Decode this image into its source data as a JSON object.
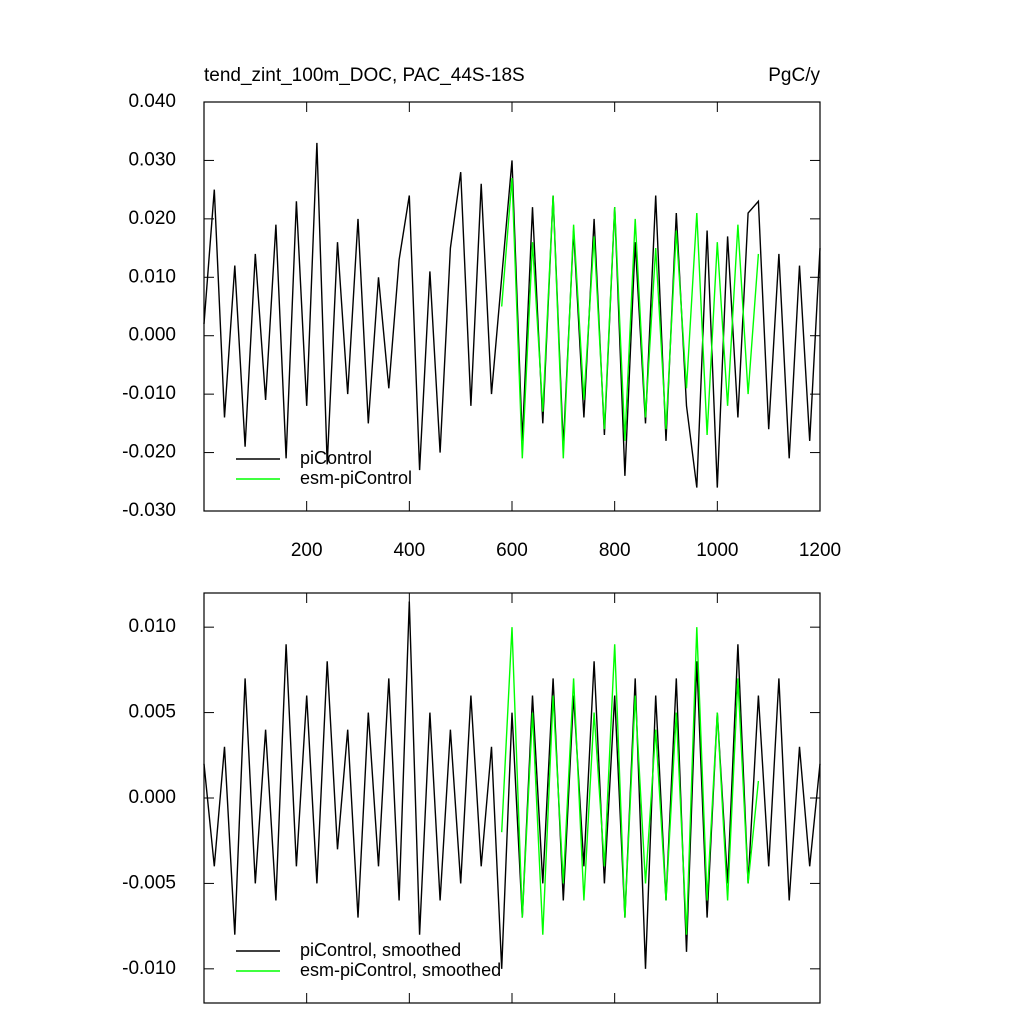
{
  "chart_data": [
    {
      "type": "line",
      "title": "tend_zint_100m_DOC, PAC_44S-18S",
      "units": "PgC/y",
      "xlim": [
        0,
        1200
      ],
      "xticks": [
        200,
        400,
        600,
        800,
        1000,
        1200
      ],
      "ylim": [
        -0.03,
        0.04
      ],
      "yticks": [
        {
          "value": -0.03,
          "label": "-0.030"
        },
        {
          "value": -0.02,
          "label": "-0.020"
        },
        {
          "value": -0.01,
          "label": "-0.010"
        },
        {
          "value": 0,
          "label": "0.000"
        },
        {
          "value": 0.01,
          "label": "0.010"
        },
        {
          "value": 0.02,
          "label": "0.020"
        },
        {
          "value": 0.03,
          "label": "0.030"
        },
        {
          "value": 0.04,
          "label": "0.040"
        }
      ],
      "legend": "lower left",
      "series": [
        {
          "name": "piControl",
          "color": "#000000",
          "x": [
            0,
            20,
            40,
            60,
            80,
            100,
            120,
            140,
            160,
            180,
            200,
            220,
            240,
            260,
            280,
            300,
            320,
            340,
            360,
            380,
            400,
            420,
            440,
            460,
            480,
            500,
            520,
            540,
            560,
            580,
            600,
            620,
            640,
            660,
            680,
            700,
            720,
            740,
            760,
            780,
            800,
            820,
            840,
            860,
            880,
            900,
            920,
            940,
            960,
            980,
            1000,
            1020,
            1040,
            1060,
            1080,
            1100,
            1120,
            1140,
            1160,
            1180,
            1200
          ],
          "values": [
            0.002,
            0.025,
            -0.014,
            0.012,
            -0.019,
            0.014,
            -0.011,
            0.019,
            -0.021,
            0.023,
            -0.012,
            0.033,
            -0.022,
            0.016,
            -0.01,
            0.02,
            -0.015,
            0.01,
            -0.009,
            0.013,
            0.024,
            -0.023,
            0.011,
            -0.02,
            0.015,
            0.028,
            -0.012,
            0.026,
            -0.01,
            0.01,
            0.03,
            -0.018,
            0.022,
            -0.015,
            0.024,
            -0.019,
            0.018,
            -0.014,
            0.02,
            -0.017,
            0.022,
            -0.024,
            0.016,
            -0.015,
            0.024,
            -0.018,
            0.021,
            -0.012,
            -0.026,
            0.018,
            -0.026,
            0.017,
            -0.014,
            0.021,
            0.023,
            -0.016,
            0.014,
            -0.021,
            0.012,
            -0.018,
            0.015
          ]
        },
        {
          "name": "esm-piControl",
          "color": "#00ff00",
          "x": [
            580,
            600,
            620,
            640,
            660,
            680,
            700,
            720,
            740,
            760,
            780,
            800,
            820,
            840,
            860,
            880,
            900,
            920,
            940,
            960,
            980,
            1000,
            1020,
            1040,
            1060,
            1080
          ],
          "values": [
            0.005,
            0.027,
            -0.021,
            0.016,
            -0.013,
            0.024,
            -0.021,
            0.019,
            -0.011,
            0.017,
            -0.016,
            0.022,
            -0.018,
            0.02,
            -0.014,
            0.015,
            -0.016,
            0.018,
            -0.009,
            0.021,
            -0.017,
            0.016,
            -0.012,
            0.019,
            -0.01,
            0.014
          ]
        }
      ]
    },
    {
      "type": "line",
      "xlim": [
        0,
        1200
      ],
      "xticks": [
        200,
        400,
        600,
        800,
        1000,
        1200
      ],
      "ylim": [
        -0.012,
        0.012
      ],
      "yticks": [
        {
          "value": -0.01,
          "label": "-0.010"
        },
        {
          "value": -0.005,
          "label": "-0.005"
        },
        {
          "value": 0,
          "label": "0.000"
        },
        {
          "value": 0.005,
          "label": "0.005"
        },
        {
          "value": 0.01,
          "label": "0.010"
        }
      ],
      "legend": "lower left",
      "series": [
        {
          "name": "piControl, smoothed",
          "color": "#000000",
          "x": [
            0,
            20,
            40,
            60,
            80,
            100,
            120,
            140,
            160,
            180,
            200,
            220,
            240,
            260,
            280,
            300,
            320,
            340,
            360,
            380,
            400,
            420,
            440,
            460,
            480,
            500,
            520,
            540,
            560,
            580,
            600,
            620,
            640,
            660,
            680,
            700,
            720,
            740,
            760,
            780,
            800,
            820,
            840,
            860,
            880,
            900,
            920,
            940,
            960,
            980,
            1000,
            1020,
            1040,
            1060,
            1080,
            1100,
            1120,
            1140,
            1160,
            1180,
            1200
          ],
          "values": [
            0.002,
            -0.004,
            0.003,
            -0.008,
            0.007,
            -0.005,
            0.004,
            -0.006,
            0.009,
            -0.004,
            0.006,
            -0.005,
            0.008,
            -0.003,
            0.004,
            -0.007,
            0.005,
            -0.004,
            0.007,
            -0.006,
            0.0115,
            -0.008,
            0.005,
            -0.006,
            0.004,
            -0.005,
            0.006,
            -0.004,
            0.003,
            -0.01,
            0.005,
            -0.007,
            0.006,
            -0.005,
            0.007,
            -0.006,
            0.006,
            -0.004,
            0.008,
            -0.005,
            0.006,
            -0.007,
            0.007,
            -0.01,
            0.006,
            -0.006,
            0.007,
            -0.009,
            0.008,
            -0.007,
            0.005,
            -0.005,
            0.009,
            -0.005,
            0.006,
            -0.004,
            0.007,
            -0.006,
            0.003,
            -0.004,
            0.002
          ]
        },
        {
          "name": "esm-piControl, smoothed",
          "color": "#00ff00",
          "x": [
            580,
            600,
            620,
            640,
            660,
            680,
            700,
            720,
            740,
            760,
            780,
            800,
            820,
            840,
            860,
            880,
            900,
            920,
            940,
            960,
            980,
            1000,
            1020,
            1040,
            1060,
            1080
          ],
          "values": [
            -0.002,
            0.01,
            -0.007,
            0.005,
            -0.008,
            0.006,
            -0.005,
            0.007,
            -0.006,
            0.005,
            -0.004,
            0.009,
            -0.007,
            0.006,
            -0.005,
            0.004,
            -0.006,
            0.005,
            -0.008,
            0.01,
            -0.006,
            0.005,
            -0.006,
            0.007,
            -0.005,
            0.001
          ]
        }
      ]
    }
  ]
}
